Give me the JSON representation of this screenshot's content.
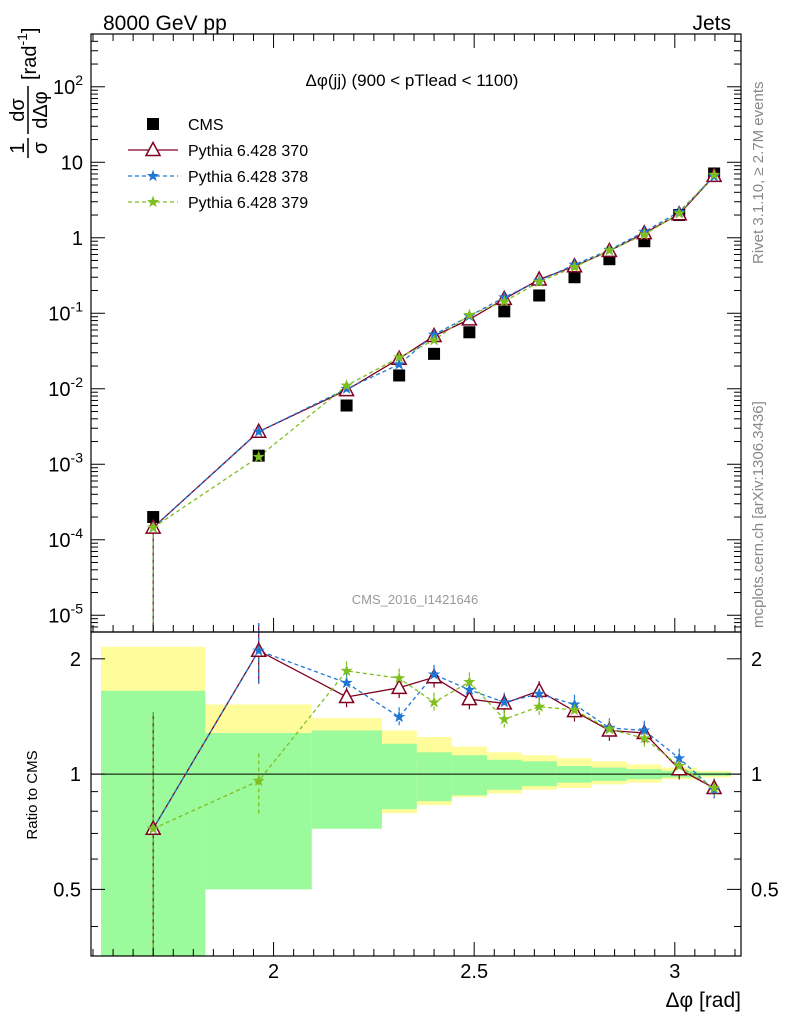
{
  "header": {
    "left_title": "8000 GeV pp",
    "right_title": "Jets"
  },
  "side_labels": {
    "rivet": "Rivet 3.1.10, ≥ 2.7M events",
    "mcplots": "mcplots.cern.ch [arXiv:1306.3436]"
  },
  "chart_data": [
    {
      "type": "scatter",
      "scale": "log",
      "title": "Δφ(jj) (900 < pTlead <  1100)",
      "watermark": "CMS_2016_I1421646",
      "ylabel": "1/σ dσ/dΔφ [rad⁻¹]",
      "ylabel_parts": {
        "num": "1",
        "den": "σ",
        "dnum": "dσ",
        "dden": "dΔφ",
        "unit": "[rad",
        "exp": "-1",
        "close": "]"
      },
      "xlim": [
        1.545,
        3.165
      ],
      "ylim": [
        6e-06,
        500
      ],
      "y_ticks": [
        {
          "v": 1e-05,
          "b": "10",
          "e": "-5"
        },
        {
          "v": 0.0001,
          "b": "10",
          "e": "-4"
        },
        {
          "v": 0.001,
          "b": "10",
          "e": "-3"
        },
        {
          "v": 0.01,
          "b": "10",
          "e": "-2"
        },
        {
          "v": 0.1,
          "b": "10",
          "e": "-1"
        },
        {
          "v": 1,
          "b": "1",
          "e": ""
        },
        {
          "v": 10,
          "b": "10",
          "e": ""
        },
        {
          "v": 100,
          "b": "10",
          "e": "2"
        }
      ],
      "legend_position": "top-left",
      "x": [
        1.7,
        1.963,
        2.182,
        2.313,
        2.4,
        2.488,
        2.575,
        2.662,
        2.75,
        2.837,
        2.924,
        3.011,
        3.098
      ],
      "series": [
        {
          "name": "CMS",
          "color": "#000000",
          "marker": "square",
          "line": "none",
          "values": [
            0.0002,
            0.0013,
            0.006,
            0.015,
            0.029,
            0.056,
            0.106,
            0.172,
            0.3,
            0.52,
            0.9,
            2.0,
            7.1
          ]
        },
        {
          "name": "Pythia 6.428 370",
          "color": "#800020",
          "marker": "triangle",
          "line": "solid",
          "values": [
            0.000145,
            0.0027,
            0.0096,
            0.025,
            0.05,
            0.083,
            0.155,
            0.28,
            0.42,
            0.67,
            1.15,
            2.05,
            6.6
          ]
        },
        {
          "name": "Pythia 6.428 378",
          "color": "#1f77d4",
          "marker": "star",
          "line": "dashed",
          "values": [
            0.000145,
            0.0027,
            0.01,
            0.021,
            0.052,
            0.092,
            0.162,
            0.27,
            0.44,
            0.69,
            1.2,
            2.2,
            6.5
          ]
        },
        {
          "name": "Pythia 6.428 379",
          "color": "#7fbf1f",
          "marker": "star",
          "line": "dashed",
          "values": [
            0.000145,
            0.00125,
            0.011,
            0.026,
            0.044,
            0.095,
            0.143,
            0.26,
            0.41,
            0.68,
            1.1,
            2.1,
            6.8
          ]
        }
      ]
    },
    {
      "type": "line",
      "scale": "log",
      "ylabel": "Ratio to CMS",
      "xlabel": "Δφ [rad]",
      "xlim": [
        1.545,
        3.165
      ],
      "ylim": [
        0.335,
        2.35
      ],
      "x_ticks": [
        {
          "v": 2,
          "label": "2"
        },
        {
          "v": 2.5,
          "label": "2.5"
        },
        {
          "v": 3,
          "label": "3"
        }
      ],
      "y_ticks": [
        {
          "v": 0.5,
          "label": "0.5"
        },
        {
          "v": 1,
          "label": "1"
        },
        {
          "v": 2,
          "label": "2"
        }
      ],
      "bands": {
        "edges": [
          1.57,
          1.83,
          2.095,
          2.27,
          2.357,
          2.444,
          2.532,
          2.619,
          2.706,
          2.793,
          2.88,
          2.968,
          3.055,
          3.14
        ],
        "inner": [
          [
            0.335,
            1.65
          ],
          [
            0.5,
            1.28
          ],
          [
            0.72,
            1.3
          ],
          [
            0.81,
            1.2
          ],
          [
            0.85,
            1.14
          ],
          [
            0.88,
            1.12
          ],
          [
            0.91,
            1.09
          ],
          [
            0.93,
            1.08
          ],
          [
            0.95,
            1.05
          ],
          [
            0.96,
            1.04
          ],
          [
            0.97,
            1.03
          ],
          [
            0.98,
            1.02
          ],
          [
            0.99,
            1.01
          ]
        ],
        "outer": [
          [
            0.335,
            2.15
          ],
          [
            0.52,
            1.52
          ],
          [
            0.77,
            1.4
          ],
          [
            0.79,
            1.3
          ],
          [
            0.83,
            1.25
          ],
          [
            0.87,
            1.18
          ],
          [
            0.89,
            1.14
          ],
          [
            0.91,
            1.12
          ],
          [
            0.92,
            1.1
          ],
          [
            0.94,
            1.08
          ],
          [
            0.95,
            1.06
          ],
          [
            0.97,
            1.04
          ],
          [
            0.98,
            1.02
          ]
        ],
        "inner_color": "#9bfa9b",
        "outer_color": "#fefc9b"
      },
      "series": [
        {
          "name": "Pythia 6.428 370",
          "color": "#800020",
          "marker": "triangle",
          "line": "solid",
          "values": [
            0.72,
            2.1,
            1.59,
            1.68,
            1.79,
            1.57,
            1.53,
            1.65,
            1.46,
            1.3,
            1.28,
            1.03,
            0.92
          ]
        },
        {
          "name": "Pythia 6.428 378",
          "color": "#1f77d4",
          "marker": "star",
          "line": "dashed",
          "values": [
            0.72,
            2.1,
            1.73,
            1.41,
            1.82,
            1.66,
            1.54,
            1.62,
            1.52,
            1.32,
            1.3,
            1.1,
            0.91
          ]
        },
        {
          "name": "Pythia 6.428 379",
          "color": "#7fbf1f",
          "marker": "star",
          "line": "dashed",
          "values": [
            0.72,
            0.96,
            1.86,
            1.78,
            1.54,
            1.74,
            1.39,
            1.5,
            1.47,
            1.31,
            1.24,
            1.05,
            0.92
          ]
        }
      ]
    }
  ]
}
